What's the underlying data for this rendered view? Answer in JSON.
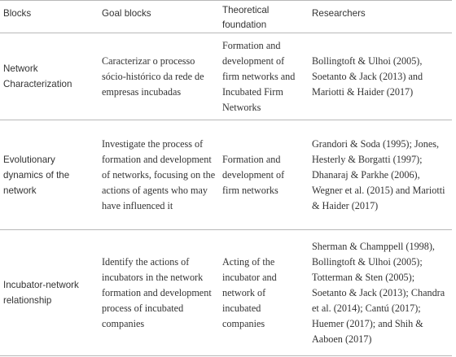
{
  "table": {
    "headers": {
      "blocks": "Blocks",
      "goal_blocks": "Goal  blocks",
      "theoretical_foundation": "Theoretical foundation",
      "researchers": "Researchers"
    },
    "rows": [
      {
        "block": "Network Characterization",
        "goal": "Caracterizar o processo sócio-histórico da rede de empresas incubadas",
        "foundation": "Formation and development of firm networks and Incubated Firm Networks",
        "researchers": "Bollingtoft & Ulhoi (2005), Soetanto & Jack (2013) and Mariotti & Haider (2017)"
      },
      {
        "block": "Evolutionary dynamics of the network",
        "goal": "Investigate the process of formation and development of networks, focusing on the actions of agents who may have influenced it",
        "foundation": "Formation and development of firm networks",
        "researchers": "Grandori & Soda (1995); Jones, Hesterly & Borgatti (1997); Dhanaraj & Parkhe (2006), Wegner et al. (2015) and Mariotti & Haider (2017)"
      },
      {
        "block": "Incubator-network relationship",
        "goal": "Identify the actions of incubators in the network formation and development process of incubated companies",
        "foundation": "Acting of the incubator and network of incubated companies",
        "researchers": "Sherman & Champpell (1998), Bollingtoft & Ulhoi (2005); Totterman & Sten (2005); Soetanto & Jack (2013); Chandra et al. (2014); Cantú (2017); Huemer (2017); and Shih & Aaboen (2017)"
      }
    ]
  }
}
